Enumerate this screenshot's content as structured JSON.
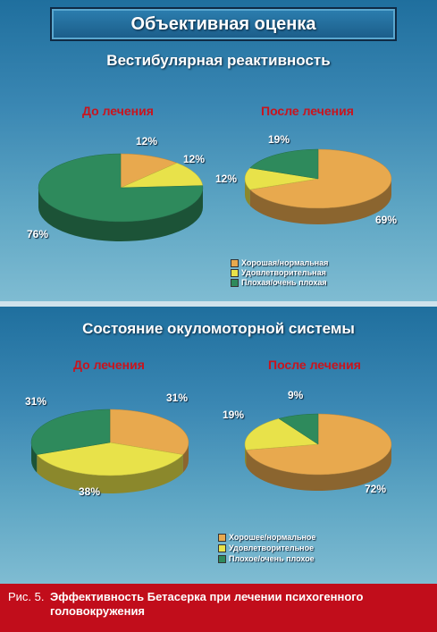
{
  "header": {
    "title": "Объективная оценка"
  },
  "colors": {
    "good": "#e8a94e",
    "satisfactory": "#e8e24a",
    "poor": "#2e8a5c",
    "caption_bg": "#c10d1b",
    "period_label": "#c8141e"
  },
  "chart_data": [
    {
      "type": "pie",
      "title": "Вестибулярная реактивность",
      "subtitle": "До лечения",
      "categories": [
        "Хорошая/нормальная",
        "Удовлетворительная",
        "Плохая/очень плохая"
      ],
      "values": [
        12,
        12,
        76
      ],
      "value_labels": [
        "12%",
        "12%",
        "76%"
      ],
      "legend": "bottom-right"
    },
    {
      "type": "pie",
      "title": "Вестибулярная реактивность",
      "subtitle": "После лечения",
      "categories": [
        "Хорошая/нормальная",
        "Удовлетворительная",
        "Плохая/очень плохая"
      ],
      "values": [
        69,
        12,
        19
      ],
      "value_labels": [
        "69%",
        "12%",
        "19%"
      ],
      "legend": "bottom-right"
    },
    {
      "type": "pie",
      "title": "Состояние окуломоторной системы",
      "subtitle": "До лечения",
      "categories": [
        "Хорошее/нормальное",
        "Удовлетворительное",
        "Плохое/очень плохое"
      ],
      "values": [
        31,
        38,
        31
      ],
      "value_labels": [
        "31%",
        "38%",
        "31%"
      ],
      "legend": "bottom-right"
    },
    {
      "type": "pie",
      "title": "Состояние окуломоторной системы",
      "subtitle": "После лечения",
      "categories": [
        "Хорошее/нормальное",
        "Удовлетворительное",
        "Плохое/очень плохое"
      ],
      "values": [
        72,
        19,
        9
      ],
      "value_labels": [
        "72%",
        "19%",
        "9%"
      ],
      "legend": "bottom-right"
    }
  ],
  "sections": {
    "top": {
      "title": "Вестибулярная реактивность",
      "before_label": "До лечения",
      "after_label": "После лечения",
      "legend": [
        "Хорошая/нормальная",
        "Удовлетворительная",
        "Плохая/очень плохая"
      ]
    },
    "bottom": {
      "title": "Состояние окуломоторной системы",
      "before_label": "До лечения",
      "after_label": "После лечения",
      "legend": [
        "Хорошее/нормальное",
        "Удовлетворительное",
        "Плохое/очень плохое"
      ]
    }
  },
  "caption": {
    "prefix": "Рис. 5.",
    "text": "Эффективность Бетасерка при лечении психогенного головокружения"
  }
}
